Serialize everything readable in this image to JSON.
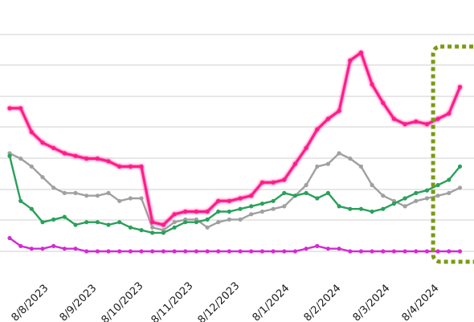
{
  "chart_data": {
    "type": "line",
    "x_tick_labels": [
      "8/8/2023",
      "8/9/2023",
      "8/10/2023",
      "8/11/2023",
      "8/12/2023",
      "8/1/2024",
      "8/2/2024",
      "8/3/2024",
      "8/4/2024"
    ],
    "y_range": [
      0,
      100
    ],
    "grid": true,
    "legend": "none",
    "highlight": {
      "from_index": 39,
      "to_index": 46,
      "color": "#7a9a12",
      "style": "dotted"
    },
    "series": [
      {
        "color": "#ff1f8a",
        "values": [
          54,
          54,
          45,
          41,
          39,
          37,
          36,
          35,
          35,
          34,
          32,
          32,
          32,
          11,
          10,
          14,
          15,
          15,
          15,
          19,
          19,
          20,
          21,
          26,
          26,
          27,
          33,
          39,
          46,
          50,
          53,
          72,
          75,
          63,
          56,
          50,
          48,
          49,
          48,
          50,
          52,
          62
        ]
      },
      {
        "color": "#a0a0a0",
        "values": [
          37,
          35,
          32,
          28,
          24,
          22,
          22,
          21,
          21,
          22,
          19,
          20,
          20,
          9,
          8,
          11,
          12,
          12,
          9,
          11,
          12,
          12,
          14,
          15,
          16,
          17,
          21,
          25,
          32,
          33,
          37,
          35,
          32,
          25,
          21,
          19,
          17,
          19,
          20,
          21,
          22,
          24
        ]
      },
      {
        "color": "#2aa05a",
        "values": [
          36,
          19,
          16,
          11,
          12,
          13,
          10,
          11,
          11,
          10,
          11,
          9,
          8,
          7,
          7,
          9,
          11,
          11,
          12,
          15,
          15,
          16,
          17,
          18,
          19,
          22,
          21,
          22,
          20,
          22,
          17,
          16,
          16,
          15,
          16,
          18,
          20,
          22,
          23,
          25,
          27,
          32
        ]
      },
      {
        "color": "#d42ad4",
        "values": [
          5,
          2,
          1,
          1,
          2,
          1,
          1,
          0,
          0,
          0,
          0,
          0,
          0,
          0,
          0,
          0,
          0,
          0,
          0,
          0,
          0,
          0,
          0,
          0,
          0,
          0,
          0,
          1,
          2,
          1,
          1,
          0,
          0,
          0,
          0,
          0,
          0,
          0,
          0,
          0,
          0,
          0
        ]
      }
    ]
  }
}
